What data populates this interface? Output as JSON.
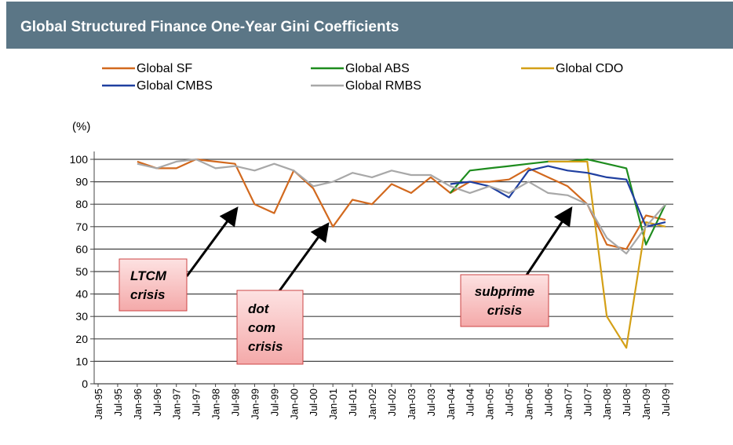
{
  "chart_data": {
    "type": "line",
    "title": "Global Structured Finance One-Year Gini Coefficients",
    "y_label": "(%)",
    "categories": [
      "Jan-95",
      "Jul-95",
      "Jan-96",
      "Jul-96",
      "Jan-97",
      "Jul-97",
      "Jan-98",
      "Jul-98",
      "Jan-99",
      "Jul-99",
      "Jan-00",
      "Jul-00",
      "Jan-01",
      "Jul-01",
      "Jan-02",
      "Jul-02",
      "Jan-03",
      "Jul-03",
      "Jan-04",
      "Jul-04",
      "Jan-05",
      "Jul-05",
      "Jan-06",
      "Jul-06",
      "Jan-07",
      "Jul-07",
      "Jan-08",
      "Jul-08",
      "Jan-09",
      "Jul-09"
    ],
    "series": [
      {
        "name": "Global SF",
        "color": "#d2691e",
        "values": [
          null,
          null,
          99,
          96,
          96,
          100,
          99,
          98,
          80,
          76,
          95,
          87,
          70,
          82,
          80,
          89,
          85,
          92,
          85,
          90,
          90,
          91,
          96,
          92,
          88,
          80,
          62,
          60,
          75,
          73
        ]
      },
      {
        "name": "Global ABS",
        "color": "#1e8c1e",
        "values": [
          null,
          null,
          null,
          null,
          null,
          null,
          null,
          null,
          null,
          null,
          null,
          null,
          null,
          null,
          null,
          null,
          null,
          null,
          85,
          95,
          96,
          97,
          98,
          99,
          99,
          100,
          98,
          96,
          62,
          80
        ]
      },
      {
        "name": "Global CDO",
        "color": "#d4a017",
        "values": [
          null,
          null,
          null,
          null,
          null,
          null,
          null,
          null,
          null,
          null,
          null,
          null,
          null,
          null,
          null,
          null,
          null,
          null,
          null,
          null,
          null,
          null,
          null,
          99,
          99,
          99,
          30,
          16,
          72,
          70
        ]
      },
      {
        "name": "Global CMBS",
        "color": "#1f3fa0",
        "values": [
          null,
          null,
          null,
          null,
          null,
          null,
          null,
          null,
          null,
          null,
          null,
          null,
          null,
          null,
          null,
          null,
          null,
          null,
          89,
          90,
          88,
          83,
          95,
          97,
          95,
          94,
          92,
          91,
          70,
          72
        ]
      },
      {
        "name": "Global RMBS",
        "color": "#a8a8a8",
        "values": [
          null,
          null,
          98,
          96,
          99,
          100,
          96,
          97,
          95,
          98,
          95,
          88,
          90,
          94,
          92,
          95,
          93,
          93,
          88,
          85,
          88,
          85,
          90,
          85,
          84,
          80,
          65,
          58,
          70,
          80
        ]
      }
    ],
    "ylim": [
      0,
      100
    ],
    "yticks": [
      0,
      10,
      20,
      30,
      40,
      50,
      60,
      70,
      80,
      90,
      100
    ],
    "grid": true,
    "annotations": [
      {
        "lines": [
          "LTCM",
          "crisis"
        ]
      },
      {
        "lines": [
          "dot",
          "com",
          "crisis"
        ]
      },
      {
        "lines": [
          "subprime",
          "crisis"
        ]
      }
    ]
  }
}
